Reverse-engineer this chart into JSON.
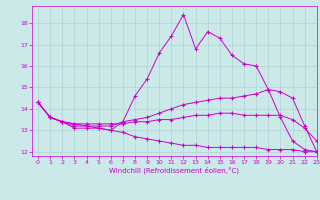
{
  "background_color": "#cbe9e9",
  "grid_color": "#b0d4d4",
  "line_color": "#cc00cc",
  "xlim": [
    -0.5,
    23
  ],
  "ylim": [
    11.8,
    18.8
  ],
  "yticks": [
    12,
    13,
    14,
    15,
    16,
    17,
    18
  ],
  "xticks": [
    0,
    1,
    2,
    3,
    4,
    5,
    6,
    7,
    8,
    9,
    10,
    11,
    12,
    13,
    14,
    15,
    16,
    17,
    18,
    19,
    20,
    21,
    22,
    23
  ],
  "xlabel": "Windchill (Refroidissement éolien,°C)",
  "lines": [
    {
      "x": [
        0,
        1,
        2,
        3,
        4,
        5,
        6,
        7,
        8,
        9,
        10,
        11,
        12,
        13,
        14,
        15,
        16,
        17,
        18,
        19,
        20,
        21,
        22,
        23
      ],
      "y": [
        14.3,
        13.6,
        13.4,
        13.1,
        13.1,
        13.1,
        13.0,
        13.4,
        14.6,
        15.4,
        16.6,
        17.4,
        18.4,
        16.8,
        17.6,
        17.3,
        16.5,
        16.1,
        16.0,
        14.9,
        13.6,
        12.5,
        12.1,
        12.0
      ]
    },
    {
      "x": [
        0,
        1,
        2,
        3,
        4,
        5,
        6,
        7,
        8,
        9,
        10,
        11,
        12,
        13,
        14,
        15,
        16,
        17,
        18,
        19,
        20,
        21,
        22,
        23
      ],
      "y": [
        14.3,
        13.6,
        13.4,
        13.2,
        13.2,
        13.2,
        13.2,
        13.4,
        13.5,
        13.6,
        13.8,
        14.0,
        14.2,
        14.3,
        14.4,
        14.5,
        14.5,
        14.6,
        14.7,
        14.9,
        14.8,
        14.5,
        13.2,
        12.0
      ]
    },
    {
      "x": [
        0,
        1,
        2,
        3,
        4,
        5,
        6,
        7,
        8,
        9,
        10,
        11,
        12,
        13,
        14,
        15,
        16,
        17,
        18,
        19,
        20,
        21,
        22,
        23
      ],
      "y": [
        14.3,
        13.6,
        13.4,
        13.3,
        13.3,
        13.3,
        13.3,
        13.3,
        13.4,
        13.4,
        13.5,
        13.5,
        13.6,
        13.7,
        13.7,
        13.8,
        13.8,
        13.7,
        13.7,
        13.7,
        13.7,
        13.5,
        13.1,
        12.5
      ]
    },
    {
      "x": [
        0,
        1,
        2,
        3,
        4,
        5,
        6,
        7,
        8,
        9,
        10,
        11,
        12,
        13,
        14,
        15,
        16,
        17,
        18,
        19,
        20,
        21,
        22,
        23
      ],
      "y": [
        14.3,
        13.6,
        13.4,
        13.3,
        13.2,
        13.1,
        13.0,
        12.9,
        12.7,
        12.6,
        12.5,
        12.4,
        12.3,
        12.3,
        12.2,
        12.2,
        12.2,
        12.2,
        12.2,
        12.1,
        12.1,
        12.1,
        12.0,
        12.0
      ]
    }
  ]
}
